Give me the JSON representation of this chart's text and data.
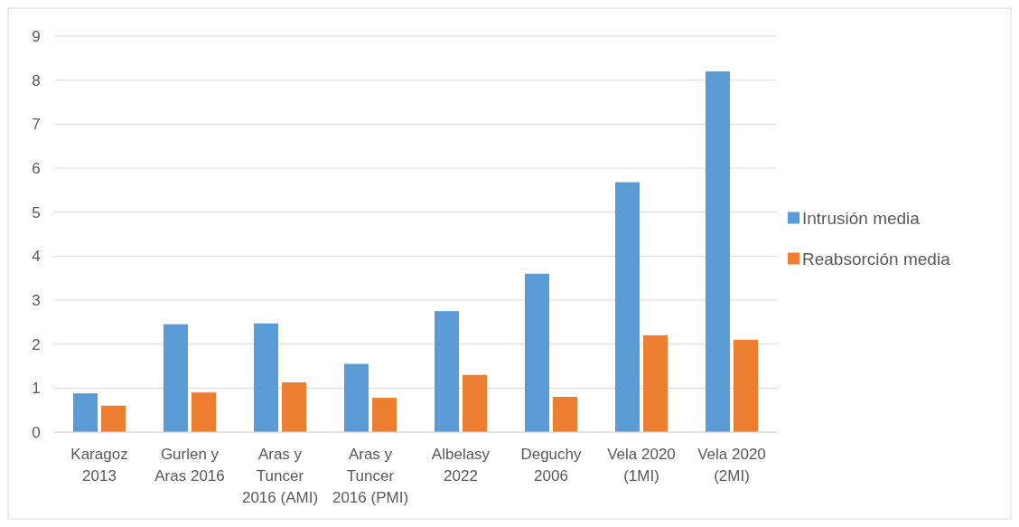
{
  "chart_data": {
    "type": "bar",
    "categories": [
      "Karagoz 2013",
      "Gurlen y Aras 2016",
      "Aras y Tuncer 2016 (AMI)",
      "Aras y Tuncer 2016 (PMI)",
      "Albelasy 2022",
      "Deguchy 2006",
      "Vela 2020 (1MI)",
      "Vela 2020 (2MI)"
    ],
    "series": [
      {
        "name": "Intrusión media",
        "color": "#5b9bd5",
        "values": [
          0.88,
          2.45,
          2.47,
          1.55,
          2.75,
          3.6,
          5.68,
          8.2
        ]
      },
      {
        "name": "Reabsorción media",
        "color": "#ed7d31",
        "values": [
          0.6,
          0.9,
          1.13,
          0.78,
          1.3,
          0.8,
          2.2,
          2.1
        ]
      }
    ],
    "ylim": [
      0,
      9
    ],
    "yticks": [
      0,
      1,
      2,
      3,
      4,
      5,
      6,
      7,
      8,
      9
    ],
    "grid": "y",
    "legend": "right"
  }
}
